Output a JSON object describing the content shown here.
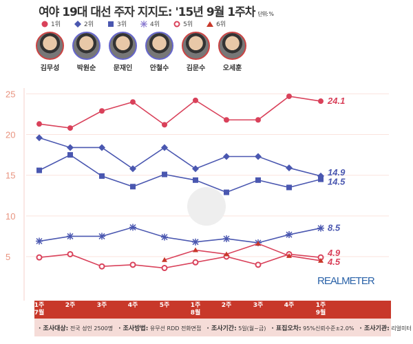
{
  "header": {
    "title": "여야 19대 대선 주자 지지도: '15년 9월 1주차",
    "unit": "단위: %"
  },
  "legend": [
    "1위",
    "2위",
    "3위",
    "4위",
    "5위",
    "6위"
  ],
  "people": [
    "김무성",
    "박원순",
    "문재인",
    "안철수",
    "김문수",
    "오세훈"
  ],
  "colors": {
    "red": "#d9415a",
    "blue": "#4a57b0",
    "bar": "#c8382a"
  },
  "chart_data": {
    "type": "line",
    "title": "여야 19대 대선 주자 지지도: '15년 9월 1주차",
    "ylabel": "%",
    "ylim": [
      0,
      27
    ],
    "yticks": [
      5,
      10,
      15,
      20,
      25
    ],
    "categories": [
      [
        "1주",
        "7월"
      ],
      [
        "2주",
        ""
      ],
      [
        "3주",
        ""
      ],
      [
        "4주",
        ""
      ],
      [
        "5주",
        ""
      ],
      [
        "1주",
        "8월"
      ],
      [
        "2주",
        ""
      ],
      [
        "3주",
        ""
      ],
      [
        "4주",
        ""
      ],
      [
        "1주",
        "9월"
      ]
    ],
    "series": [
      {
        "name": "김무성",
        "marker": "circle",
        "color": "red",
        "values": [
          21.3,
          20.8,
          22.9,
          24.0,
          21.2,
          24.2,
          21.8,
          21.8,
          24.7,
          24.1
        ],
        "label": "24.1"
      },
      {
        "name": "박원순",
        "marker": "diamond",
        "color": "blue",
        "values": [
          19.6,
          18.4,
          18.4,
          15.8,
          18.4,
          15.8,
          17.3,
          17.3,
          15.9,
          14.9
        ],
        "label": "14.9"
      },
      {
        "name": "문재인",
        "marker": "square",
        "color": "blue",
        "values": [
          15.6,
          17.5,
          14.9,
          13.6,
          15.1,
          14.4,
          12.9,
          14.4,
          13.5,
          14.5
        ],
        "label": "14.5"
      },
      {
        "name": "안철수",
        "marker": "star",
        "color": "blue",
        "values": [
          6.9,
          7.5,
          7.5,
          8.6,
          7.4,
          6.8,
          7.2,
          6.7,
          7.7,
          8.5
        ],
        "label": "8.5"
      },
      {
        "name": "김문수",
        "marker": "ring",
        "color": "red",
        "values": [
          4.9,
          5.3,
          3.8,
          4.0,
          3.6,
          4.3,
          5.0,
          4.0,
          5.3,
          4.9
        ],
        "label": "4.9"
      },
      {
        "name": "오세훈",
        "marker": "triangle",
        "color": "red",
        "values": [
          null,
          null,
          null,
          null,
          4.6,
          5.8,
          5.3,
          6.6,
          5.1,
          4.5
        ],
        "label": "4.5"
      }
    ]
  },
  "brand": "REALMETER",
  "footer": [
    {
      "k": "· 조사대상:",
      "v": "전국 성인 2500명"
    },
    {
      "k": "· 조사방법:",
      "v": "유무선 RDD 전화면접"
    },
    {
      "k": "· 조사기간:",
      "v": "5일(월~금)"
    },
    {
      "k": "· 표집오차:",
      "v": "95%신뢰수준±2.0%"
    },
    {
      "k": "· 조사기관:",
      "v": "리얼미터"
    }
  ]
}
